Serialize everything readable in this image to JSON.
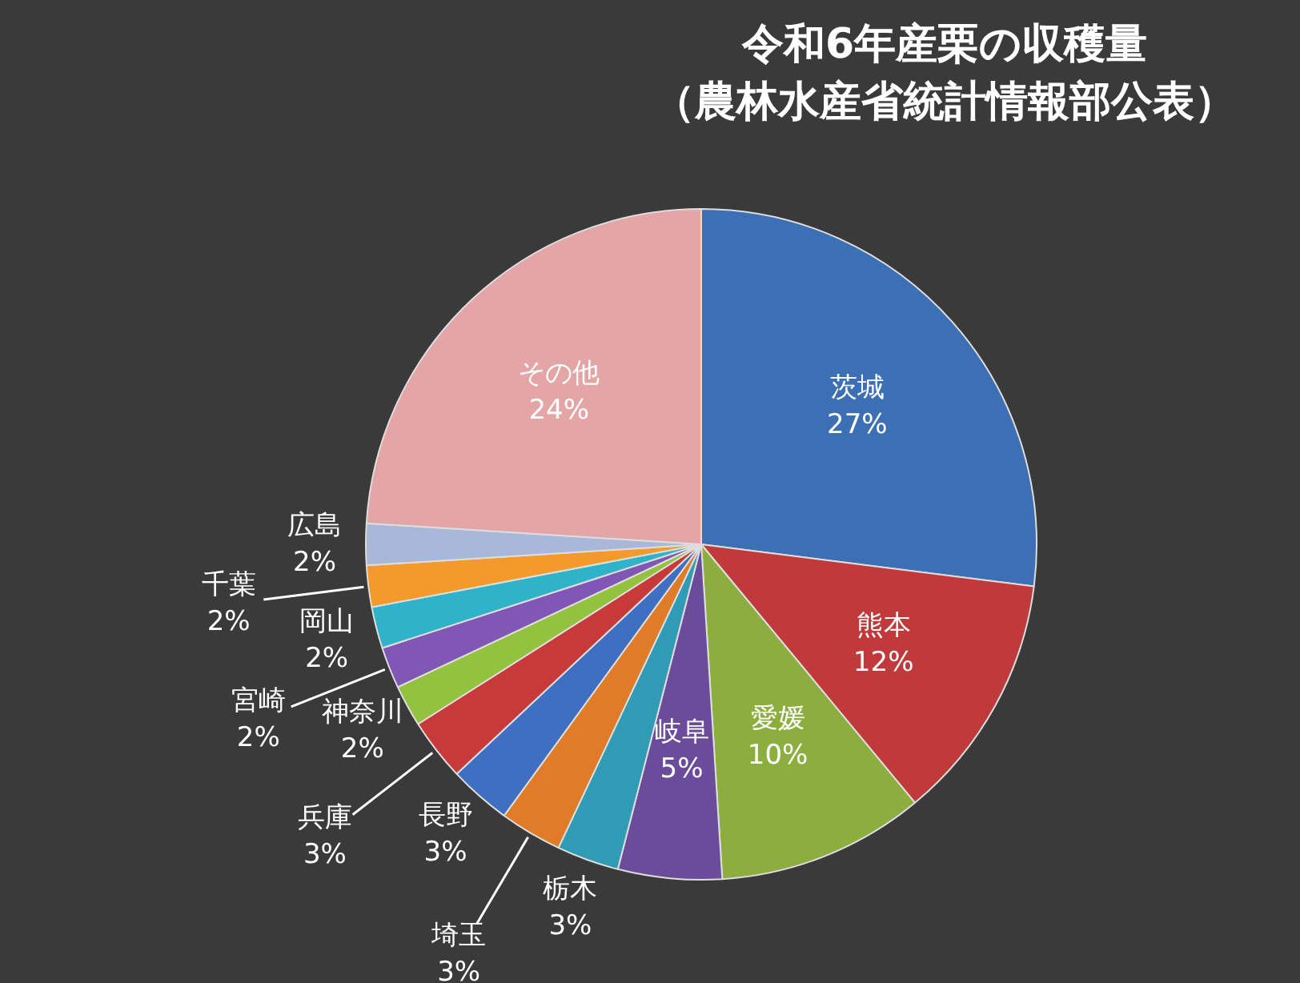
{
  "chart_data": {
    "type": "pie",
    "title": "令和6年産栗の収穫量",
    "subtitle": "（農林水産省統計情報部公表）",
    "categories": [
      "茨城",
      "熊本",
      "愛媛",
      "岐阜",
      "栃木",
      "埼玉",
      "長野",
      "兵庫",
      "神奈川",
      "宮崎",
      "岡山",
      "千葉",
      "広島",
      "その他"
    ],
    "values": [
      27,
      12,
      10,
      5,
      3,
      3,
      3,
      3,
      2,
      2,
      2,
      2,
      2,
      24
    ],
    "value_labels": [
      "27%",
      "12%",
      "10%",
      "5%",
      "3%",
      "3%",
      "3%",
      "3%",
      "2%",
      "2%",
      "2%",
      "2%",
      "2%",
      "24%"
    ],
    "colors": [
      "#3d6fb5",
      "#c0393b",
      "#8cae3f",
      "#6b4c9a",
      "#2f9bb5",
      "#e07b28",
      "#3f6fc0",
      "#c83a3a",
      "#93c23f",
      "#8057b4",
      "#2fb3c9",
      "#f39a2a",
      "#a9b8d9",
      "#e3a5a5"
    ],
    "legend": false
  }
}
